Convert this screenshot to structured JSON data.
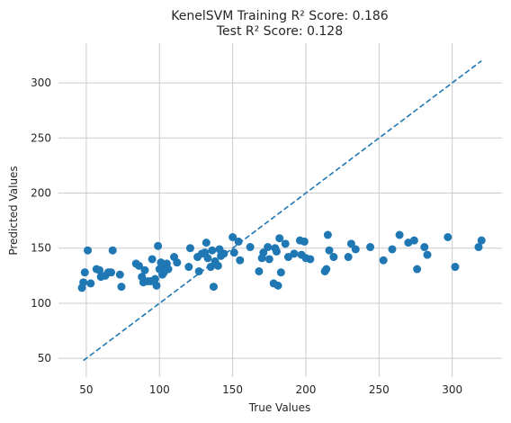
{
  "chart_data": {
    "type": "scatter",
    "title_line1": "KenelSVM Training R² Score: 0.186",
    "title_line2": "Test R² Score: 0.128",
    "xlabel": "True Values",
    "ylabel": "Predicted Values",
    "xlim": [
      31,
      334
    ],
    "ylim": [
      33,
      336
    ],
    "xticks": [
      50,
      100,
      150,
      200,
      250,
      300
    ],
    "yticks": [
      50,
      100,
      150,
      200,
      250,
      300
    ],
    "grid": true,
    "colors": {
      "points": "#1f77b4",
      "grid": "#cccccc",
      "text": "#262626"
    },
    "reference_line": {
      "style": "dashed",
      "x": [
        48,
        320
      ],
      "y": [
        48,
        320
      ]
    },
    "points": [
      [
        47,
        114
      ],
      [
        48,
        119
      ],
      [
        49,
        128
      ],
      [
        51,
        148
      ],
      [
        53,
        118
      ],
      [
        57,
        131
      ],
      [
        59,
        130
      ],
      [
        60,
        124
      ],
      [
        63,
        125
      ],
      [
        65,
        128
      ],
      [
        67,
        128
      ],
      [
        68,
        148
      ],
      [
        73,
        126
      ],
      [
        74,
        115
      ],
      [
        84,
        136
      ],
      [
        86,
        134
      ],
      [
        88,
        124
      ],
      [
        89,
        119
      ],
      [
        90,
        130
      ],
      [
        92,
        120
      ],
      [
        94,
        120
      ],
      [
        95,
        140
      ],
      [
        97,
        122
      ],
      [
        98,
        116
      ],
      [
        99,
        152
      ],
      [
        100,
        131
      ],
      [
        101,
        137
      ],
      [
        102,
        126
      ],
      [
        103,
        128
      ],
      [
        104,
        133
      ],
      [
        105,
        136
      ],
      [
        106,
        131
      ],
      [
        110,
        142
      ],
      [
        112,
        137
      ],
      [
        120,
        133
      ],
      [
        121,
        150
      ],
      [
        126,
        142
      ],
      [
        127,
        129
      ],
      [
        129,
        145
      ],
      [
        131,
        146
      ],
      [
        132,
        155
      ],
      [
        133,
        141
      ],
      [
        135,
        133
      ],
      [
        136,
        148
      ],
      [
        137,
        115
      ],
      [
        138,
        138
      ],
      [
        140,
        134
      ],
      [
        141,
        149
      ],
      [
        142,
        143
      ],
      [
        144,
        145
      ],
      [
        150,
        160
      ],
      [
        151,
        146
      ],
      [
        154,
        156
      ],
      [
        155,
        139
      ],
      [
        162,
        151
      ],
      [
        168,
        129
      ],
      [
        170,
        141
      ],
      [
        171,
        146
      ],
      [
        174,
        151
      ],
      [
        175,
        140
      ],
      [
        178,
        118
      ],
      [
        179,
        150
      ],
      [
        180,
        147
      ],
      [
        181,
        116
      ],
      [
        182,
        159
      ],
      [
        183,
        128
      ],
      [
        186,
        154
      ],
      [
        188,
        142
      ],
      [
        192,
        145
      ],
      [
        196,
        157
      ],
      [
        197,
        144
      ],
      [
        199,
        156
      ],
      [
        200,
        141
      ],
      [
        203,
        140
      ],
      [
        213,
        129
      ],
      [
        214,
        131
      ],
      [
        215,
        162
      ],
      [
        216,
        148
      ],
      [
        219,
        142
      ],
      [
        229,
        142
      ],
      [
        231,
        154
      ],
      [
        234,
        149
      ],
      [
        244,
        151
      ],
      [
        253,
        139
      ],
      [
        259,
        149
      ],
      [
        264,
        162
      ],
      [
        270,
        155
      ],
      [
        274,
        157
      ],
      [
        276,
        131
      ],
      [
        281,
        151
      ],
      [
        283,
        144
      ],
      [
        297,
        160
      ],
      [
        302,
        133
      ],
      [
        318,
        151
      ],
      [
        320,
        157
      ]
    ]
  }
}
